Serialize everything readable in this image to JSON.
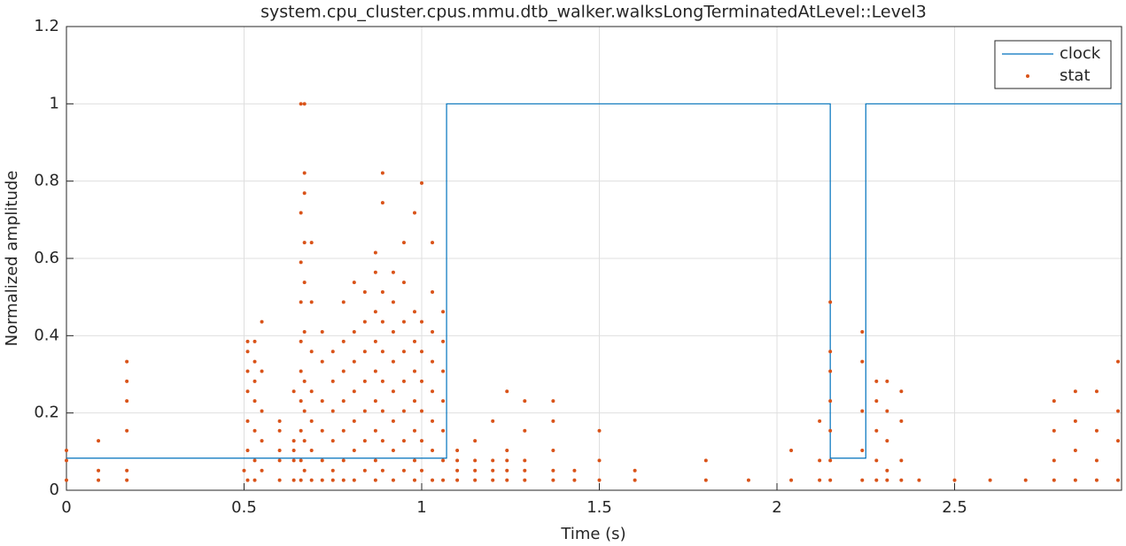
{
  "chart_data": {
    "type": "line",
    "title": "system.cpu_cluster.cpus.mmu.dtb_walker.walksLongTerminatedAtLevel::Level3",
    "xlabel": "Time (s)",
    "ylabel": "Normalized amplitude",
    "xlim": [
      0,
      2.97
    ],
    "ylim": [
      0,
      1.2
    ],
    "xticks": [
      0,
      0.5,
      1,
      1.5,
      2,
      2.5
    ],
    "yticks": [
      0,
      0.2,
      0.4,
      0.6,
      0.8,
      1,
      1.2
    ],
    "grid": true,
    "legend": "northeast",
    "series": [
      {
        "name": "clock",
        "color": "#0072bd",
        "mode": "line",
        "x": [
          0,
          1.07,
          1.07,
          2.15,
          2.15,
          2.25,
          2.25,
          2.97
        ],
        "values": [
          0.083,
          0.083,
          1,
          1,
          0.083,
          0.083,
          1,
          1
        ]
      },
      {
        "name": "stat",
        "color": "#d95319",
        "mode": "markers",
        "x": [
          0,
          0,
          0,
          0.09,
          0.09,
          0.09,
          0.17,
          0.17,
          0.17,
          0.17,
          0.17,
          0.17,
          0.5,
          0.51,
          0.51,
          0.51,
          0.51,
          0.51,
          0.51,
          0.51,
          0.53,
          0.53,
          0.53,
          0.53,
          0.53,
          0.53,
          0.53,
          0.55,
          0.55,
          0.55,
          0.55,
          0.55,
          0.6,
          0.6,
          0.6,
          0.6,
          0.6,
          0.64,
          0.64,
          0.64,
          0.64,
          0.64,
          0.66,
          0.66,
          0.66,
          0.66,
          0.66,
          0.66,
          0.66,
          0.66,
          0.66,
          0.66,
          0.67,
          0.67,
          0.67,
          0.67,
          0.67,
          0.67,
          0.67,
          0.67,
          0.67,
          0.67,
          0.69,
          0.69,
          0.69,
          0.69,
          0.69,
          0.69,
          0.69,
          0.72,
          0.72,
          0.72,
          0.72,
          0.72,
          0.72,
          0.75,
          0.75,
          0.75,
          0.75,
          0.75,
          0.75,
          0.78,
          0.78,
          0.78,
          0.78,
          0.78,
          0.78,
          0.78,
          0.81,
          0.81,
          0.81,
          0.81,
          0.81,
          0.81,
          0.81,
          0.84,
          0.84,
          0.84,
          0.84,
          0.84,
          0.84,
          0.84,
          0.87,
          0.87,
          0.87,
          0.87,
          0.87,
          0.87,
          0.87,
          0.87,
          0.87,
          0.89,
          0.89,
          0.89,
          0.89,
          0.89,
          0.89,
          0.89,
          0.89,
          0.89,
          0.92,
          0.92,
          0.92,
          0.92,
          0.92,
          0.92,
          0.92,
          0.92,
          0.95,
          0.95,
          0.95,
          0.95,
          0.95,
          0.95,
          0.95,
          0.95,
          0.98,
          0.98,
          0.98,
          0.98,
          0.98,
          0.98,
          0.98,
          0.98,
          1,
          1,
          1,
          1,
          1,
          1,
          1,
          1.03,
          1.03,
          1.03,
          1.03,
          1.03,
          1.03,
          1.03,
          1.03,
          1.06,
          1.06,
          1.06,
          1.06,
          1.06,
          1.06,
          1.06,
          1.1,
          1.1,
          1.1,
          1.1,
          1.15,
          1.15,
          1.15,
          1.15,
          1.2,
          1.2,
          1.2,
          1.2,
          1.24,
          1.24,
          1.24,
          1.24,
          1.24,
          1.29,
          1.29,
          1.29,
          1.29,
          1.29,
          1.37,
          1.37,
          1.37,
          1.37,
          1.37,
          1.43,
          1.43,
          1.5,
          1.5,
          1.5,
          1.6,
          1.6,
          1.8,
          1.8,
          1.92,
          2.04,
          2.04,
          2.12,
          2.12,
          2.12,
          2.15,
          2.15,
          2.15,
          2.15,
          2.15,
          2.15,
          2.15,
          2.24,
          2.24,
          2.24,
          2.24,
          2.24,
          2.28,
          2.28,
          2.28,
          2.28,
          2.28,
          2.31,
          2.31,
          2.31,
          2.31,
          2.31,
          2.35,
          2.35,
          2.35,
          2.35,
          2.4,
          2.5,
          2.6,
          2.7,
          2.78,
          2.78,
          2.78,
          2.78,
          2.84,
          2.84,
          2.84,
          2.84,
          2.9,
          2.9,
          2.9,
          2.9,
          2.96,
          2.96,
          2.96,
          2.96
        ],
        "values": [
          0.026,
          0.077,
          0.103,
          0.026,
          0.051,
          0.128,
          0.026,
          0.051,
          0.154,
          0.231,
          0.282,
          0.333,
          0.051,
          0.026,
          0.103,
          0.179,
          0.256,
          0.308,
          0.359,
          0.385,
          0.026,
          0.077,
          0.154,
          0.231,
          0.282,
          0.333,
          0.385,
          0.051,
          0.128,
          0.205,
          0.308,
          0.436,
          0.026,
          0.077,
          0.103,
          0.154,
          0.179,
          0.026,
          0.077,
          0.103,
          0.128,
          0.256,
          0.026,
          0.077,
          0.154,
          0.231,
          0.308,
          0.385,
          0.487,
          0.59,
          0.718,
          1,
          0.051,
          0.128,
          0.205,
          0.282,
          0.41,
          0.538,
          0.641,
          0.769,
          0.821,
          1,
          0.026,
          0.103,
          0.179,
          0.256,
          0.359,
          0.487,
          0.641,
          0.026,
          0.077,
          0.154,
          0.231,
          0.333,
          0.41,
          0.026,
          0.051,
          0.128,
          0.205,
          0.282,
          0.359,
          0.026,
          0.077,
          0.154,
          0.231,
          0.308,
          0.385,
          0.487,
          0.026,
          0.103,
          0.179,
          0.256,
          0.333,
          0.41,
          0.538,
          0.051,
          0.128,
          0.205,
          0.282,
          0.359,
          0.436,
          0.513,
          0.026,
          0.077,
          0.154,
          0.231,
          0.308,
          0.385,
          0.462,
          0.564,
          0.615,
          0.051,
          0.128,
          0.205,
          0.282,
          0.359,
          0.436,
          0.513,
          0.744,
          0.821,
          0.026,
          0.103,
          0.179,
          0.256,
          0.333,
          0.41,
          0.487,
          0.564,
          0.051,
          0.128,
          0.205,
          0.282,
          0.359,
          0.436,
          0.538,
          0.641,
          0.026,
          0.077,
          0.154,
          0.231,
          0.308,
          0.385,
          0.462,
          0.718,
          0.051,
          0.128,
          0.205,
          0.282,
          0.359,
          0.436,
          0.795,
          0.026,
          0.103,
          0.179,
          0.256,
          0.333,
          0.41,
          0.513,
          0.641,
          0.026,
          0.077,
          0.154,
          0.231,
          0.308,
          0.385,
          0.462,
          0.026,
          0.051,
          0.077,
          0.103,
          0.026,
          0.051,
          0.077,
          0.128,
          0.026,
          0.051,
          0.077,
          0.179,
          0.026,
          0.051,
          0.077,
          0.103,
          0.256,
          0.026,
          0.051,
          0.077,
          0.154,
          0.231,
          0.026,
          0.051,
          0.103,
          0.179,
          0.231,
          0.026,
          0.051,
          0.026,
          0.077,
          0.154,
          0.026,
          0.051,
          0.026,
          0.077,
          0.026,
          0.026,
          0.103,
          0.026,
          0.077,
          0.179,
          0.026,
          0.077,
          0.154,
          0.231,
          0.308,
          0.359,
          0.487,
          0.026,
          0.103,
          0.205,
          0.333,
          0.41,
          0.026,
          0.077,
          0.154,
          0.231,
          0.282,
          0.026,
          0.051,
          0.128,
          0.205,
          0.282,
          0.026,
          0.077,
          0.179,
          0.256,
          0.026,
          0.026,
          0.026,
          0.026,
          0.026,
          0.077,
          0.154,
          0.231,
          0.026,
          0.103,
          0.179,
          0.256,
          0.026,
          0.077,
          0.154,
          0.256,
          0.026,
          0.128,
          0.205,
          0.333
        ]
      }
    ]
  }
}
